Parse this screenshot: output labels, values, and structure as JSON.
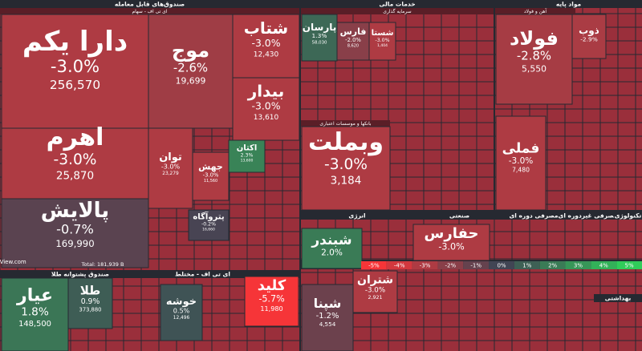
{
  "chart_data": {
    "type": "treemap",
    "site": "BourseView.com",
    "total_label": "Total: 181,939 B",
    "colors": {
      "negative": "#f63538",
      "neutral": "#414554",
      "positive": "#30cc5a"
    },
    "legend_ticks": [
      {
        "value": -5,
        "label": "-5%"
      },
      {
        "value": -4,
        "label": "-4%"
      },
      {
        "value": -3,
        "label": "-3%"
      },
      {
        "value": -2,
        "label": "-2%"
      },
      {
        "value": -1,
        "label": "-1%"
      },
      {
        "value": 0,
        "label": "0%"
      },
      {
        "value": 1,
        "label": "1%"
      },
      {
        "value": 2,
        "label": "2%"
      },
      {
        "value": 3,
        "label": "3%"
      },
      {
        "value": 4,
        "label": "4%"
      },
      {
        "value": 5,
        "label": "5%"
      }
    ],
    "groups": [
      {
        "name": "صندوق‌های قابل معامله",
        "subgroup": "ای تی اف - سهام",
        "categories": [
          "دارا یکم",
          "اهرم",
          "پالایش",
          "موج",
          "شتاب",
          "بیدار",
          "توان",
          "جهش",
          "اکتان",
          "پتروآگاه"
        ],
        "values": [
          -3.0,
          -3.0,
          -0.7,
          -2.6,
          -3.0,
          -3.0,
          -3.0,
          -3.0,
          2.3,
          -0.2
        ],
        "value_labels": [
          "-3.0%",
          "-3.0%",
          "-0.7%",
          "-2.6%",
          "-3.0%",
          "-3.0%",
          "-3.0%",
          "-3.0%",
          "2.3%",
          "-0.2%"
        ],
        "sizes": [
          256570,
          25870,
          169990,
          19699,
          12430,
          13610,
          23279,
          11560,
          13600,
          16660
        ],
        "size_labels": [
          "256,570",
          "25,870",
          "169,990",
          "19,699",
          "12,430",
          "13,610",
          "23,279",
          "11,560",
          "13,600",
          "16,660"
        ]
      },
      {
        "name": "صندوق پشتوانه طلا",
        "categories": [
          "عیار",
          "طلا"
        ],
        "values": [
          1.8,
          0.9
        ],
        "value_labels": [
          "1.8%",
          "0.9%"
        ],
        "sizes": [
          148500,
          373880
        ],
        "size_labels": [
          "148,500",
          "373,880"
        ]
      },
      {
        "name": "ای تی اف - مختلط",
        "categories": [
          "خوشه",
          "کلید"
        ],
        "values": [
          0.5,
          -5.7
        ],
        "value_labels": [
          "0.5%",
          "-5.7%"
        ],
        "sizes": [
          12496,
          11980
        ],
        "size_labels": [
          "12,496",
          "11,980"
        ]
      },
      {
        "name": "خدمات مالی",
        "subgroup": "سرمایه گذاری",
        "categories": [
          "پارسان",
          "فارس",
          "شستا"
        ],
        "values": [
          1.3,
          -2.0,
          -3.0
        ],
        "value_labels": [
          "1.3%",
          "-2.0%",
          "-3.0%"
        ],
        "sizes": [
          58030,
          8620,
          1404
        ],
        "size_labels": [
          "58,030",
          "8,620",
          "1,404"
        ]
      },
      {
        "subgroup": "بانکها و موسسات اعتباری",
        "categories": [
          "وبملت"
        ],
        "values": [
          -3.0
        ],
        "value_labels": [
          "-3.0%"
        ],
        "sizes": [
          3184
        ],
        "size_labels": [
          "3,184"
        ]
      },
      {
        "name": "مواد پایه",
        "subgroup": "آهن و فولاد",
        "categories": [
          "فولاد",
          "ذوب",
          "فملی"
        ],
        "values": [
          -2.8,
          -2.9,
          -3.0
        ],
        "value_labels": [
          "-2.8%",
          "-2.9%",
          "-3.0%"
        ],
        "sizes": [
          5550,
          null,
          7480
        ],
        "size_labels": [
          "5,550",
          null,
          "7,480"
        ]
      },
      {
        "name": "انرژی",
        "categories": [
          "شبندر",
          "شتران",
          "شپنا"
        ],
        "values": [
          2.0,
          -3.0,
          -1.2
        ],
        "value_labels": [
          "2.0%",
          "-3.0%",
          "-1.2%"
        ],
        "sizes": [
          null,
          2921,
          4554
        ],
        "size_labels": [
          null,
          "2,921",
          "4,554"
        ]
      },
      {
        "name": "صنعتی",
        "categories": [
          "حفارس"
        ],
        "values": [
          -3.0
        ],
        "value_labels": [
          "-3.0%"
        ],
        "sizes": [
          null
        ],
        "size_labels": [
          null
        ]
      },
      {
        "name": "مصرفی دوره ای",
        "categories": [],
        "values": [],
        "value_labels": [],
        "sizes": [],
        "size_labels": []
      },
      {
        "name": "مصرفی غیردوره ای",
        "categories": [],
        "values": [],
        "value_labels": [],
        "sizes": [],
        "size_labels": []
      },
      {
        "name": "تکنولوژی",
        "categories": [],
        "values": [],
        "value_labels": [],
        "sizes": [],
        "size_labels": []
      },
      {
        "name": "بهداشتی",
        "categories": [],
        "values": [],
        "value_labels": [],
        "sizes": [],
        "size_labels": []
      }
    ]
  }
}
